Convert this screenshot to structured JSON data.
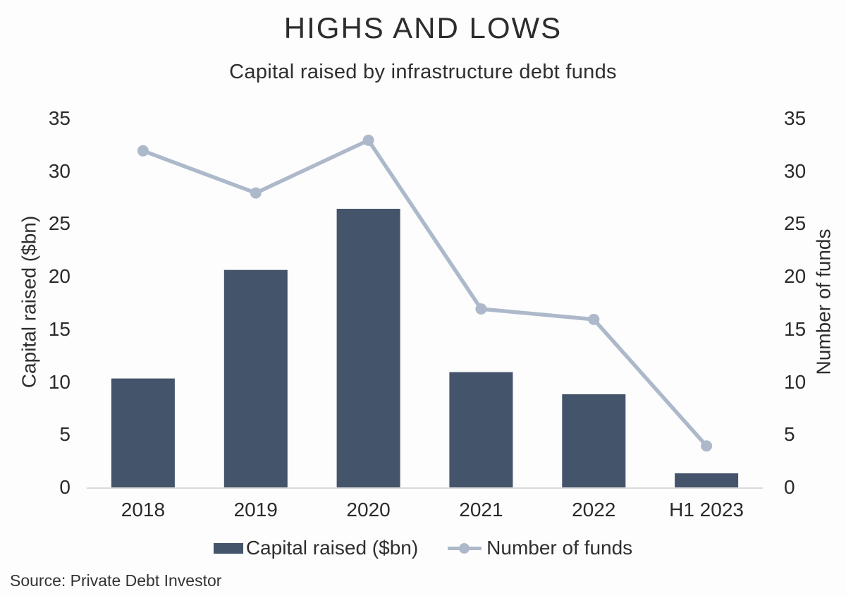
{
  "header": {
    "title": "HIGHS AND LOWS",
    "subtitle": "Capital raised by infrastructure debt funds"
  },
  "footer": {
    "source": "Source: Private Debt Investor"
  },
  "colors": {
    "bar": "#44546A",
    "line": "#ADB9CA",
    "axis_line": "#D9D9D9",
    "text": "#2E2E2E"
  },
  "chart_data": {
    "type": "bar",
    "subtype": "combo-bar-line-dual-axis",
    "title": "HIGHS AND LOWS",
    "subtitle": "Capital raised by infrastructure debt funds",
    "categories": [
      "2018",
      "2019",
      "2020",
      "2021",
      "2022",
      "H1 2023"
    ],
    "series": [
      {
        "name": "Capital raised ($bn)",
        "type": "bar",
        "axis": "left",
        "color": "#44546A",
        "values": [
          10.4,
          20.7,
          26.5,
          11.0,
          8.9,
          1.4
        ]
      },
      {
        "name": "Number of funds",
        "type": "line",
        "axis": "right",
        "color": "#ADB9CA",
        "values": [
          32,
          28,
          33,
          17,
          16,
          4
        ]
      }
    ],
    "ylabel_left": "Capital raised ($bn)",
    "ylabel_right": "Number of funds",
    "xlabel": "",
    "ylim": [
      0,
      35
    ],
    "yticks": [
      0,
      5,
      10,
      15,
      20,
      25,
      30,
      35
    ],
    "grid": false,
    "legend_position": "bottom",
    "source": "Source: Private Debt Investor"
  }
}
